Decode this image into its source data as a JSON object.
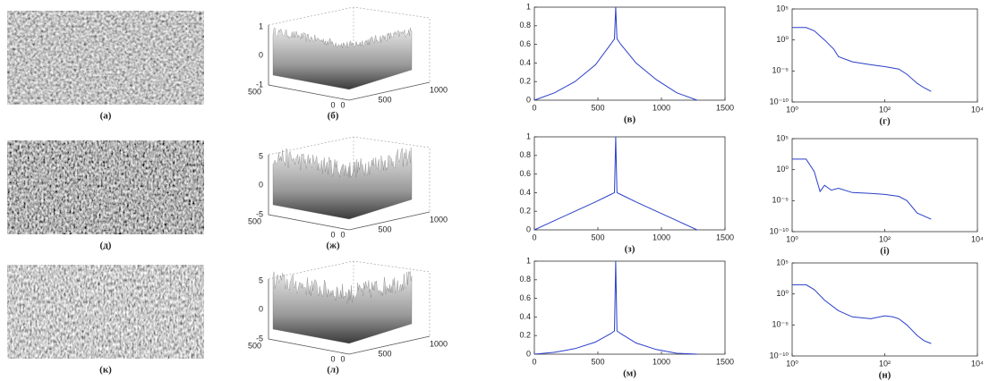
{
  "panels": [
    {
      "caption": "(a)"
    },
    {
      "caption": "(д)"
    },
    {
      "caption": "(к)"
    }
  ],
  "surfaces": [
    {
      "caption": "(б)",
      "zticks": [
        1,
        0,
        -1
      ],
      "yticks": [
        500,
        0
      ],
      "xticks": [
        0,
        500,
        1000
      ]
    },
    {
      "caption": "(ж)",
      "zticks": [
        5,
        0,
        -5
      ],
      "yticks": [
        500,
        0
      ],
      "xticks": [
        0,
        500,
        1000
      ]
    },
    {
      "caption": "(л)",
      "zticks": [
        5,
        0,
        -5
      ],
      "yticks": [
        500,
        0
      ],
      "xticks": [
        0,
        500,
        1000
      ]
    }
  ],
  "chart_data": [
    {
      "type": "line",
      "caption": "(в)",
      "x": [
        0,
        160,
        320,
        480,
        600,
        630,
        640,
        650,
        680,
        800,
        960,
        1120,
        1280
      ],
      "series": [
        {
          "color": "#2a3fc8",
          "values": [
            0,
            0.08,
            0.2,
            0.38,
            0.6,
            0.66,
            1,
            0.66,
            0.6,
            0.4,
            0.22,
            0.08,
            0
          ]
        }
      ],
      "xlim": [
        0,
        1500
      ],
      "ylim": [
        0,
        1
      ],
      "xticks": [
        0,
        500,
        1000,
        1500
      ],
      "yticks": [
        0,
        0.2,
        0.4,
        0.6,
        0.8,
        1
      ]
    },
    {
      "type": "line",
      "caption": "(г)",
      "log_scale": true,
      "x": [
        1,
        2,
        3,
        5,
        8,
        10,
        20,
        50,
        100,
        200,
        300,
        500,
        700,
        1000
      ],
      "series": [
        {
          "color": "#2a3fc8",
          "values": [
            100,
            100,
            30,
            1,
            0.03,
            0.002,
            0.0003,
            0.0001,
            5e-05,
            2e-05,
            3e-06,
            1e-07,
            2e-08,
            5e-09
          ]
        }
      ],
      "xlim": [
        1,
        10000
      ],
      "ylim": [
        1e-10,
        100000
      ],
      "xticks": [
        {
          "value": 1,
          "label": "10⁰"
        },
        {
          "value": 100,
          "label": "10²"
        },
        {
          "value": 10000,
          "label": "10⁴"
        }
      ],
      "yticks": [
        {
          "value": 100000,
          "label": "10⁵"
        },
        {
          "value": 1,
          "label": "10⁰"
        },
        {
          "value": 1e-05,
          "label": "10⁻⁵"
        },
        {
          "value": 1e-10,
          "label": "10⁻¹⁰"
        }
      ]
    },
    {
      "type": "line",
      "caption": "(з)",
      "x": [
        0,
        160,
        320,
        480,
        600,
        630,
        640,
        650,
        680,
        800,
        960,
        1120,
        1280
      ],
      "series": [
        {
          "color": "#2a3fc8",
          "values": [
            0,
            0.1,
            0.2,
            0.3,
            0.38,
            0.4,
            1,
            0.4,
            0.38,
            0.3,
            0.2,
            0.1,
            0
          ]
        }
      ],
      "xlim": [
        0,
        1500
      ],
      "ylim": [
        0,
        1
      ],
      "xticks": [
        0,
        500,
        1000,
        1500
      ],
      "yticks": [
        0,
        0.2,
        0.4,
        0.6,
        0.8,
        1
      ]
    },
    {
      "type": "line",
      "caption": "(і)",
      "log_scale": true,
      "x": [
        1,
        2,
        3,
        4,
        5,
        7,
        10,
        20,
        50,
        100,
        200,
        300,
        500,
        1000
      ],
      "series": [
        {
          "color": "#2a3fc8",
          "values": [
            50,
            50,
            0.5,
            0.0003,
            0.003,
            0.0005,
            0.001,
            0.0002,
            0.00015,
            0.0001,
            5e-05,
            1e-05,
            1e-07,
            1e-08
          ]
        }
      ],
      "xlim": [
        1,
        10000
      ],
      "ylim": [
        1e-10,
        100000
      ],
      "xticks": [
        {
          "value": 1,
          "label": "10⁰"
        },
        {
          "value": 100,
          "label": "10²"
        },
        {
          "value": 10000,
          "label": "10⁴"
        }
      ],
      "yticks": [
        {
          "value": 100000,
          "label": "10⁵"
        },
        {
          "value": 1,
          "label": "10⁰"
        },
        {
          "value": 1e-05,
          "label": "10⁻⁵"
        },
        {
          "value": 1e-10,
          "label": "10⁻¹⁰"
        }
      ]
    },
    {
      "type": "line",
      "caption": "(м)",
      "x": [
        0,
        160,
        320,
        480,
        600,
        630,
        640,
        650,
        680,
        800,
        960,
        1120,
        1280
      ],
      "series": [
        {
          "color": "#2a3fc8",
          "values": [
            0,
            0.02,
            0.06,
            0.13,
            0.22,
            0.25,
            1,
            0.25,
            0.22,
            0.12,
            0.05,
            0.01,
            0
          ]
        }
      ],
      "xlim": [
        0,
        1500
      ],
      "ylim": [
        0,
        1
      ],
      "xticks": [
        0,
        500,
        1000,
        1500
      ],
      "yticks": [
        0,
        0.2,
        0.4,
        0.6,
        0.8,
        1
      ]
    },
    {
      "type": "line",
      "caption": "(н)",
      "log_scale": true,
      "x": [
        1,
        2,
        3,
        5,
        10,
        20,
        50,
        100,
        150,
        200,
        300,
        500,
        700,
        1000
      ],
      "series": [
        {
          "color": "#2a3fc8",
          "values": [
            30,
            30,
            5,
            0.1,
            0.002,
            0.0002,
            0.0001,
            0.0003,
            0.0002,
            0.0001,
            1e-05,
            2e-07,
            3e-08,
            1e-08
          ]
        }
      ],
      "xlim": [
        1,
        10000
      ],
      "ylim": [
        1e-10,
        100000
      ],
      "xticks": [
        {
          "value": 1,
          "label": "10⁰"
        },
        {
          "value": 100,
          "label": "10²"
        },
        {
          "value": 10000,
          "label": "10⁴"
        }
      ],
      "yticks": [
        {
          "value": 100000,
          "label": "10⁵"
        },
        {
          "value": 1,
          "label": "10⁰"
        },
        {
          "value": 1e-05,
          "label": "10⁻⁵"
        },
        {
          "value": 1e-10,
          "label": "10⁻¹⁰"
        }
      ]
    }
  ]
}
